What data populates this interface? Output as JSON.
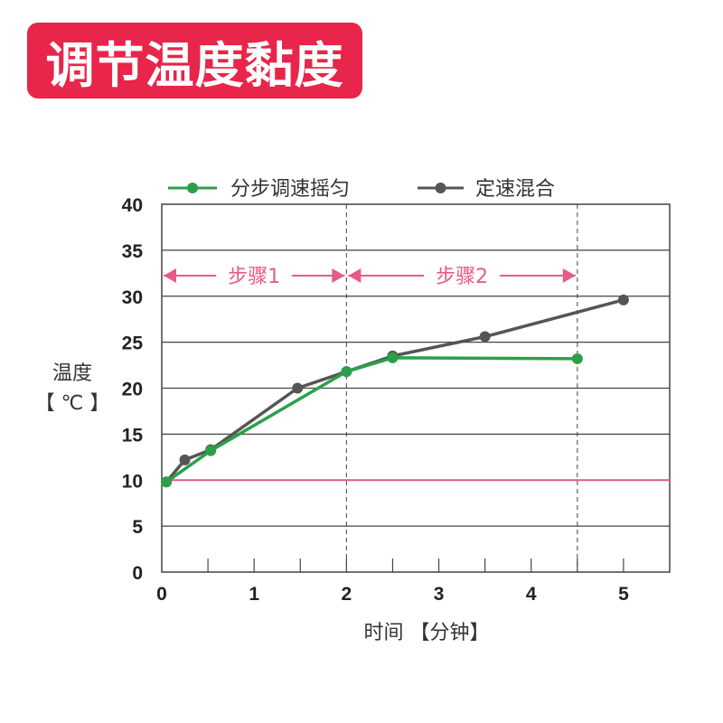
{
  "title": "调节温度黏度",
  "colors": {
    "banner": "#e8254a",
    "series_1": "#2ba04a",
    "series_2": "#555555",
    "baseline": "#e05a8d",
    "step_arrows": "#e8598a",
    "grid": "#444444"
  },
  "chart_data": {
    "type": "line",
    "ylabel_line1": "温度",
    "ylabel_line2": "【 ℃ 】",
    "xlabel": "时间 【分钟】",
    "xlim": [
      0,
      5.5
    ],
    "ylim": [
      0,
      40
    ],
    "x_ticks": [
      "0",
      "1",
      "2",
      "3",
      "4",
      "5"
    ],
    "y_ticks": [
      "0",
      "5",
      "10",
      "15",
      "20",
      "25",
      "30",
      "35",
      "40"
    ],
    "grid": "horizontal",
    "legend_position": "top",
    "series": [
      {
        "name": "分步调速摇匀",
        "color": "#2ba04a",
        "x": [
          0.05,
          0.53,
          2.0,
          2.5,
          4.5
        ],
        "y": [
          9.8,
          13.2,
          21.8,
          23.3,
          23.2
        ]
      },
      {
        "name": "定速混合",
        "color": "#555555",
        "x": [
          0.05,
          0.25,
          0.53,
          1.47,
          2.0,
          2.5,
          3.5,
          5.0
        ],
        "y": [
          9.8,
          12.2,
          13.3,
          20.0,
          21.8,
          23.5,
          25.6,
          29.6
        ]
      }
    ],
    "reference_line": {
      "y": 10
    },
    "dashed_verticals": [
      2,
      4.5
    ],
    "steps": [
      {
        "label": "步骤1",
        "from": 0,
        "to": 2
      },
      {
        "label": "步骤2",
        "from": 2,
        "to": 4.5
      }
    ]
  }
}
